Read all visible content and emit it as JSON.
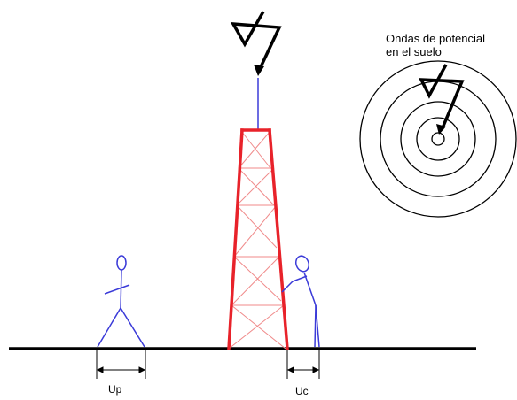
{
  "labels": {
    "ground_waves_line1": "Ondas de potencial",
    "ground_waves_line2": "en el suelo",
    "step_voltage": "Up",
    "touch_voltage": "Uc"
  },
  "colors": {
    "tower": "#e8222a",
    "tower_lattice": "#f08a8a",
    "person": "#3a3ad8",
    "ground": "#000000",
    "lightning": "#000000"
  },
  "icons": {
    "lightning_tower": "lightning-bolt-icon",
    "lightning_circles": "lightning-bolt-icon"
  }
}
